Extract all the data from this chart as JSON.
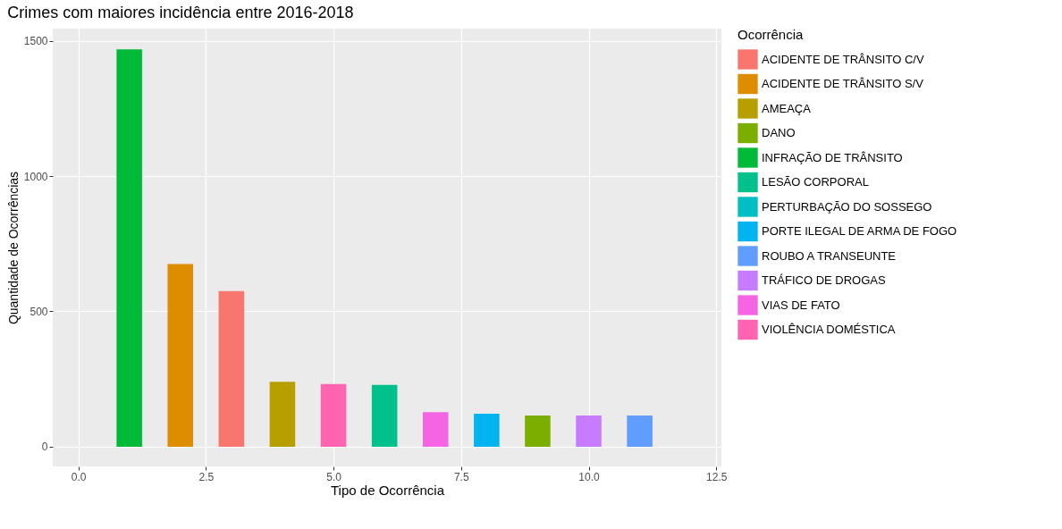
{
  "chart_data": {
    "type": "bar",
    "title": "Crimes com maiores incidência entre 2016-2018",
    "xlabel": "Tipo de Ocorrência",
    "ylabel": "Quantidade de Ocorrências",
    "legend_title": "Ocorrência",
    "legend": "right",
    "grid": true,
    "xlim": [
      -0.5,
      12.6
    ],
    "xticks": [
      {
        "value": 0,
        "label": "0.0"
      },
      2.5,
      {
        "value": 5,
        "label": "5.0"
      },
      7.5,
      {
        "value": 10,
        "label": "10.0"
      },
      12.5
    ],
    "ylim": [
      -73,
      1545
    ],
    "yticks": [
      0,
      500,
      1000,
      1500
    ],
    "series": [
      {
        "name": "ACIDENTE DE TRÂNSITO C/V",
        "color": "#f8766d",
        "x": [
          3
        ],
        "values": [
          575
        ]
      },
      {
        "name": "ACIDENTE DE TRÂNSITO S/V",
        "color": "#de8c00",
        "x": [
          2
        ],
        "values": [
          675
        ]
      },
      {
        "name": "AMEAÇA",
        "color": "#b79f00",
        "x": [
          4
        ],
        "values": [
          240
        ]
      },
      {
        "name": "DANO",
        "color": "#7cae00",
        "x": [
          9
        ],
        "values": [
          115
        ]
      },
      {
        "name": "INFRAÇÃO DE TRÂNSITO",
        "color": "#00ba38",
        "x": [
          1
        ],
        "values": [
          1468
        ]
      },
      {
        "name": "LESÃO CORPORAL",
        "color": "#00c08b",
        "x": [
          6
        ],
        "values": [
          228
        ]
      },
      {
        "name": "PERTURBAÇÃO DO SOSSEGO",
        "color": "#00bfc4"
      },
      {
        "name": "PORTE ILEGAL DE ARMA DE FOGO",
        "color": "#00b4f0",
        "x": [
          8
        ],
        "values": [
          122
        ]
      },
      {
        "name": "ROUBO A TRANSEUNTE",
        "color": "#619cff",
        "x": [
          11
        ],
        "values": [
          115
        ]
      },
      {
        "name": "TRÁFICO DE DROGAS",
        "color": "#c77cff",
        "x": [
          10
        ],
        "values": [
          115
        ]
      },
      {
        "name": "VIAS DE FATO",
        "color": "#f564e3",
        "x": [
          7
        ],
        "values": [
          128
        ]
      },
      {
        "name": "VIOLÊNCIA DOMÉSTICA",
        "color": "#ff64b0",
        "x": [
          5
        ],
        "values": [
          232
        ]
      }
    ]
  }
}
